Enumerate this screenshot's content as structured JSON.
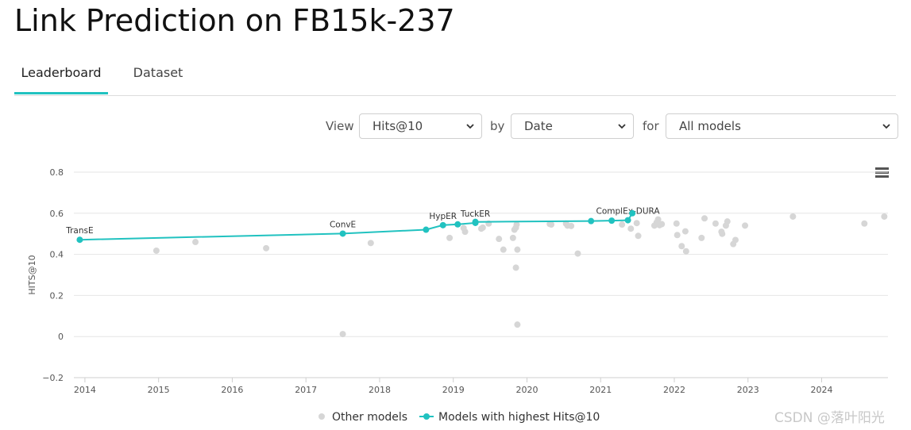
{
  "page": {
    "title": "Link Prediction on FB15k-237"
  },
  "tabs": [
    {
      "label": "Leaderboard",
      "active": true
    },
    {
      "label": "Dataset",
      "active": false
    }
  ],
  "controls": {
    "view_label": "View",
    "view_value": "Hits@10",
    "by_label": "by",
    "by_value": "Date",
    "for_label": "for",
    "for_value": "All models"
  },
  "watermark": "CSDN @落叶阳光",
  "colors": {
    "accent": "#21c2c0",
    "other": "#d6d6d6"
  },
  "chart_data": {
    "type": "scatter",
    "title": "",
    "xlabel": "",
    "ylabel": "HITS@10",
    "xlim": [
      2013.85,
      2024.9
    ],
    "ylim": [
      -0.2,
      0.8
    ],
    "x_ticks": [
      "2014",
      "2015",
      "2016",
      "2017",
      "2018",
      "2019",
      "2020",
      "2021",
      "2022",
      "2023",
      "2024"
    ],
    "y_ticks": [
      "0.8",
      "0.6",
      "0.4",
      "0.2",
      "0",
      "−0.2"
    ],
    "grid": true,
    "legend_position": "bottom",
    "series": [
      {
        "name": "Other models",
        "type": "scatter",
        "points": [
          [
            2014.97,
            0.418
          ],
          [
            2015.5,
            0.46
          ],
          [
            2016.46,
            0.43
          ],
          [
            2017.5,
            0.012
          ],
          [
            2017.88,
            0.455
          ],
          [
            2018.95,
            0.48
          ],
          [
            2019.14,
            0.528
          ],
          [
            2019.16,
            0.51
          ],
          [
            2019.38,
            0.525
          ],
          [
            2019.4,
            0.53
          ],
          [
            2019.48,
            0.55
          ],
          [
            2019.62,
            0.475
          ],
          [
            2019.68,
            0.423
          ],
          [
            2019.81,
            0.48
          ],
          [
            2019.83,
            0.52
          ],
          [
            2019.85,
            0.53
          ],
          [
            2019.85,
            0.335
          ],
          [
            2019.86,
            0.545
          ],
          [
            2019.87,
            0.423
          ],
          [
            2019.87,
            0.058
          ],
          [
            2020.31,
            0.548
          ],
          [
            2020.33,
            0.545
          ],
          [
            2020.53,
            0.55
          ],
          [
            2020.55,
            0.54
          ],
          [
            2020.6,
            0.538
          ],
          [
            2020.69,
            0.404
          ],
          [
            2021.29,
            0.545
          ],
          [
            2021.41,
            0.525
          ],
          [
            2021.49,
            0.552
          ],
          [
            2021.51,
            0.49
          ],
          [
            2021.73,
            0.54
          ],
          [
            2021.76,
            0.555
          ],
          [
            2021.78,
            0.57
          ],
          [
            2021.8,
            0.542
          ],
          [
            2021.83,
            0.547
          ],
          [
            2022.03,
            0.55
          ],
          [
            2022.04,
            0.494
          ],
          [
            2022.1,
            0.44
          ],
          [
            2022.15,
            0.512
          ],
          [
            2022.16,
            0.415
          ],
          [
            2022.37,
            0.48
          ],
          [
            2022.41,
            0.575
          ],
          [
            2022.56,
            0.55
          ],
          [
            2022.64,
            0.51
          ],
          [
            2022.65,
            0.5
          ],
          [
            2022.7,
            0.54
          ],
          [
            2022.72,
            0.56
          ],
          [
            2022.8,
            0.45
          ],
          [
            2022.83,
            0.47
          ],
          [
            2022.96,
            0.54
          ],
          [
            2023.61,
            0.584
          ],
          [
            2024.58,
            0.55
          ],
          [
            2024.85,
            0.584
          ]
        ]
      },
      {
        "name": "Models with highest Hits@10",
        "type": "line",
        "points": [
          [
            2013.93,
            0.471,
            "TransE"
          ],
          [
            2017.5,
            0.501,
            "ConvE"
          ],
          [
            2018.63,
            0.52,
            ""
          ],
          [
            2018.86,
            0.542,
            "HypER"
          ],
          [
            2019.06,
            0.546,
            ""
          ],
          [
            2019.3,
            0.553,
            "TuckER"
          ],
          [
            2019.3,
            0.558,
            ""
          ],
          [
            2020.87,
            0.562,
            ""
          ],
          [
            2021.15,
            0.564,
            ""
          ],
          [
            2021.37,
            0.566,
            "ComplEx-DURA"
          ],
          [
            2021.43,
            0.6,
            ""
          ]
        ]
      }
    ]
  }
}
